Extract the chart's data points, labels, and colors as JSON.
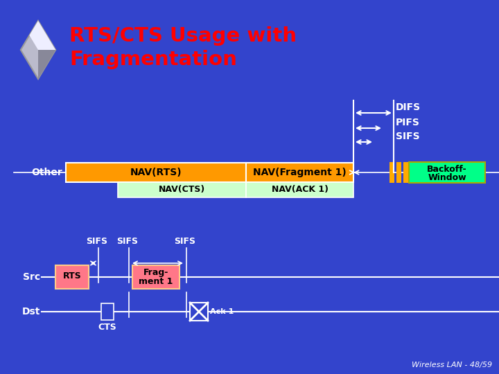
{
  "bg_color": "#3344cc",
  "title_color": "#ff0000",
  "white": "#ffffff",
  "black": "#000000",
  "nav_rts_color": "#ff9900",
  "nav_cts_color": "#ccffcc",
  "backoff_color": "#00ff88",
  "rts_box_color": "#ff7788",
  "watermark": "Wireless LAN - 48/59",
  "title_line1": "RTS/CTS Usage with",
  "title_line2": "Fragmentation"
}
